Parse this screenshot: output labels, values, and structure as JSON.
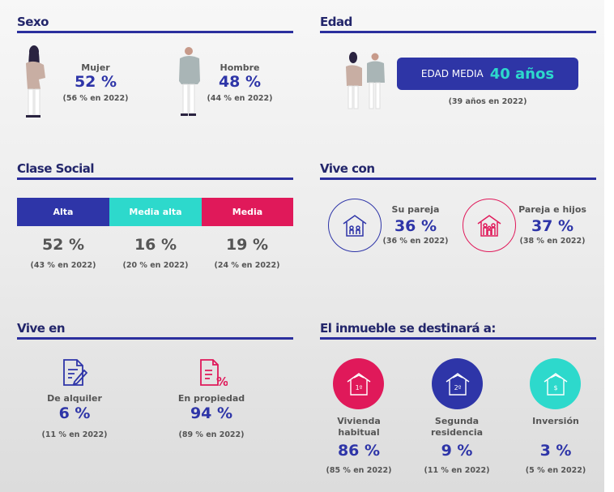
{
  "colors": {
    "navy": "#2b2f9e",
    "blue": "#2e35a8",
    "teal": "#2dd9cc",
    "pink": "#e0195a",
    "gray": "#555555"
  },
  "sexo": {
    "title": "Sexo",
    "items": [
      {
        "label": "Mujer",
        "pct": "52 %",
        "prev": "(56 % en 2022)",
        "icon": "woman-figure-icon"
      },
      {
        "label": "Hombre",
        "pct": "48 %",
        "prev": "(44 % en 2022)",
        "icon": "man-figure-icon"
      }
    ]
  },
  "edad": {
    "title": "Edad",
    "label": "EDAD MEDIA",
    "value": "40 años",
    "prev": "(39 años en 2022)",
    "icon": "couple-figure-icon"
  },
  "clase": {
    "title": "Clase Social",
    "items": [
      {
        "label": "Alta",
        "pct": "52 %",
        "prev": "(43 % en 2022)",
        "color": "#2e35a8"
      },
      {
        "label": "Media alta",
        "pct": "16 %",
        "prev": "(20 % en 2022)",
        "color": "#2dd9cc"
      },
      {
        "label": "Media",
        "pct": "19 %",
        "prev": "(24 % en 2022)",
        "color": "#e0195a"
      }
    ]
  },
  "vivecon": {
    "title": "Vive con",
    "items": [
      {
        "label": "Su pareja",
        "pct": "36 %",
        "prev": "(36 % en 2022)",
        "icon": "house-couple-icon"
      },
      {
        "label": "Pareja e hijos",
        "pct": "37 %",
        "prev": "(38 % en 2022)",
        "icon": "house-family-icon"
      }
    ]
  },
  "viveen": {
    "title": "Vive en",
    "items": [
      {
        "label": "De alquiler",
        "pct": "6 %",
        "prev": "(11 % en 2022)",
        "icon": "rental-document-icon"
      },
      {
        "label": "En propiedad",
        "pct": "94 %",
        "prev": "(89 % en 2022)",
        "icon": "property-document-icon"
      }
    ]
  },
  "destino": {
    "title": "El inmueble se destinará a:",
    "items": [
      {
        "label1": "Vivienda",
        "label2": "habitual",
        "pct": "86 %",
        "prev": "(85 % en 2022)",
        "badge": "1º",
        "icon": "house-first-icon"
      },
      {
        "label1": "Segunda",
        "label2": "residencia",
        "pct": "9 %",
        "prev": "(11 % en 2022)",
        "badge": "2º",
        "icon": "house-second-icon"
      },
      {
        "label1": "Inversión",
        "label2": "",
        "pct": "3 %",
        "prev": "(5 % en 2022)",
        "badge": "$",
        "icon": "house-investment-icon"
      }
    ]
  }
}
